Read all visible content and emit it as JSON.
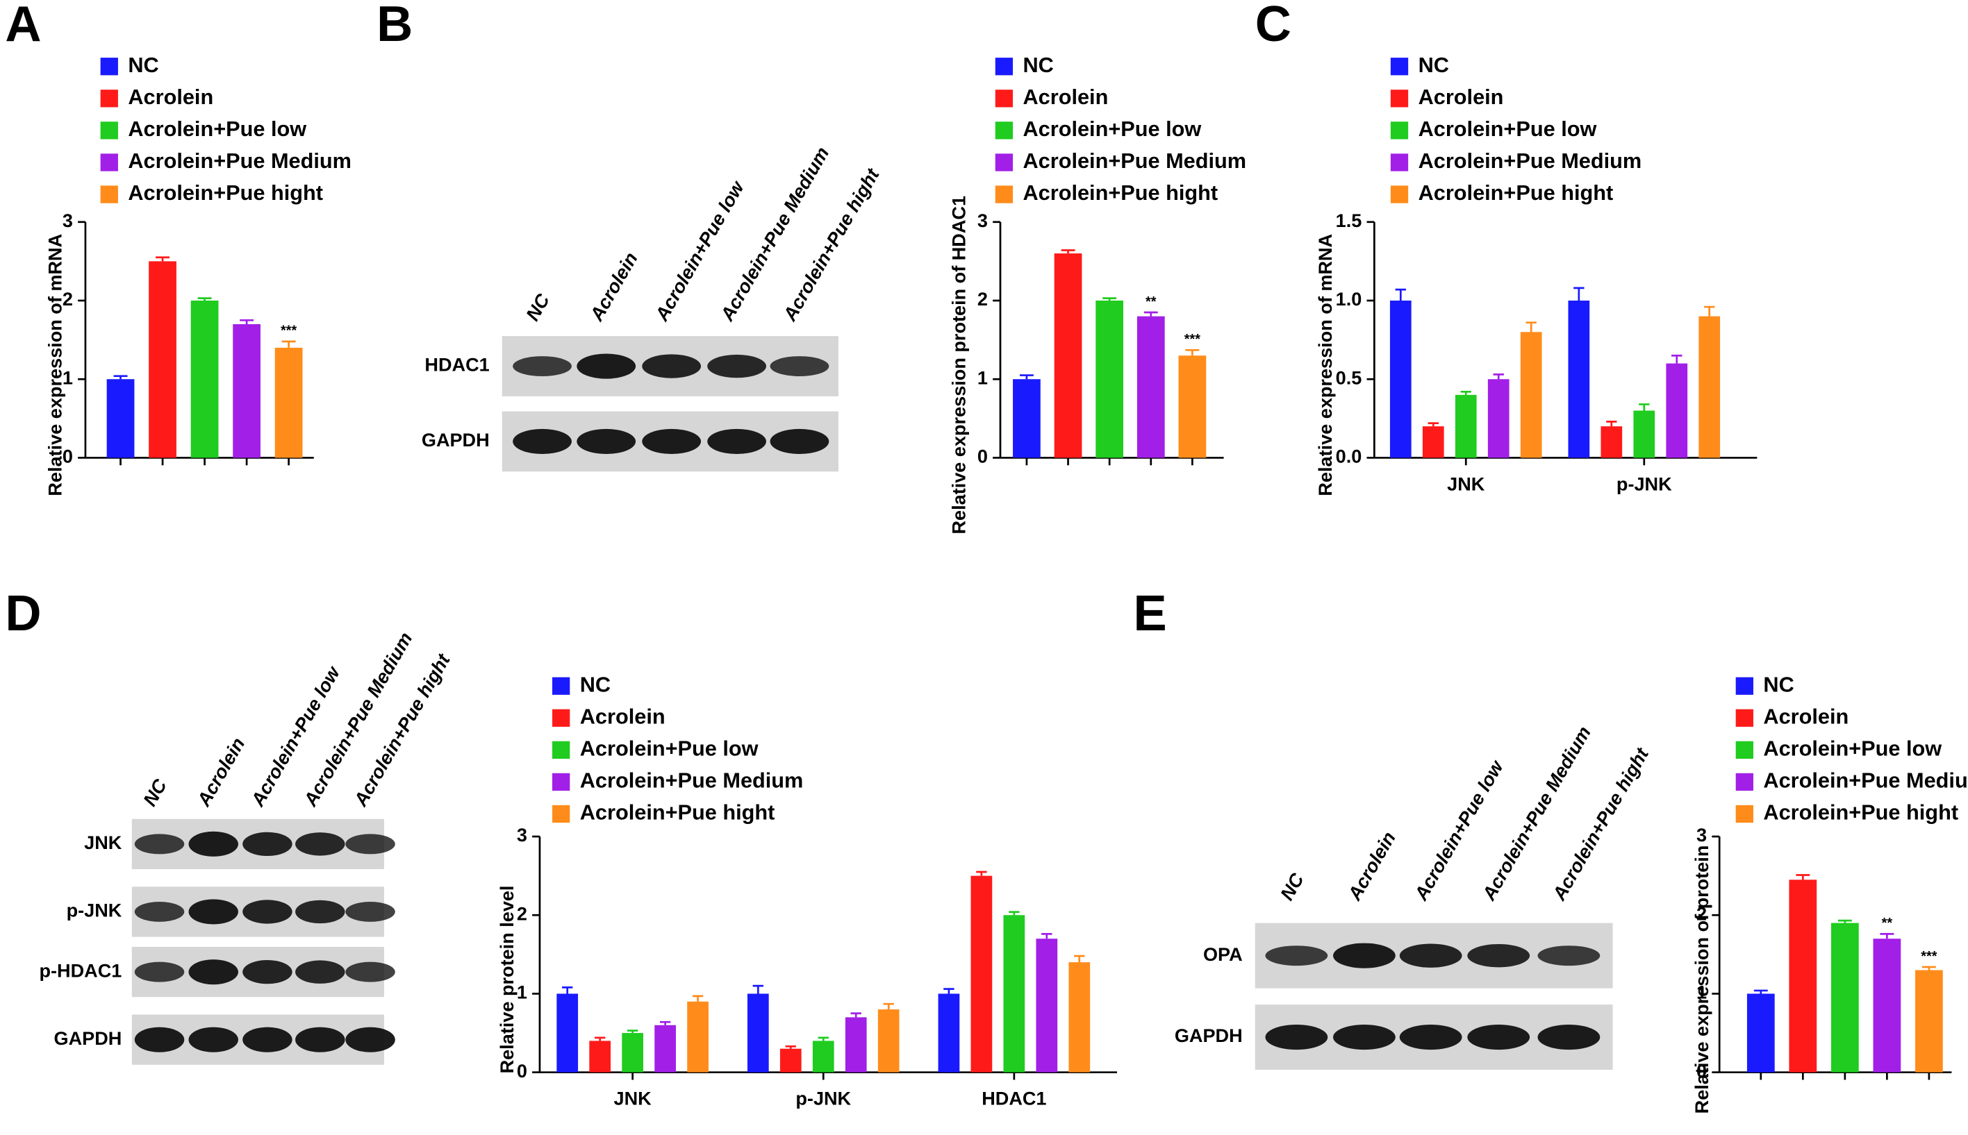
{
  "panel_labels": [
    "A",
    "B",
    "C",
    "D",
    "E"
  ],
  "chart_data": [
    {
      "type": "bar",
      "ylabel": "Relative expression of  mRNA",
      "categories": [
        null
      ],
      "ylim": [
        0,
        3
      ],
      "yticks": [
        0,
        1,
        2,
        3
      ],
      "series": [
        {
          "name": "NC",
          "color": "#1a1aff",
          "values": [
            1.0
          ],
          "errors": [
            0.04
          ]
        },
        {
          "name": "Acrolein",
          "color": "#ff1a1a",
          "values": [
            2.5
          ],
          "errors": [
            0.05
          ]
        },
        {
          "name": "Acrolein+Pue low",
          "color": "#1fcc1f",
          "values": [
            2.0
          ],
          "errors": [
            0.03
          ]
        },
        {
          "name": "Acrolein+Pue Medium",
          "color": "#a21fe8",
          "values": [
            1.7
          ],
          "errors": [
            0.05
          ]
        },
        {
          "name": "Acrolein+Pue hight",
          "color": "#ff8c1a",
          "values": [
            1.4
          ],
          "errors": [
            0.08
          ],
          "significance": [
            "***"
          ]
        }
      ]
    },
    {
      "type": "bar",
      "ylabel": "Relative expression protein of HDAC1",
      "categories": [
        null
      ],
      "ylim": [
        0,
        3
      ],
      "yticks": [
        0,
        1,
        2,
        3
      ],
      "series": [
        {
          "name": "NC",
          "color": "#1a1aff",
          "values": [
            1.0
          ],
          "errors": [
            0.05
          ]
        },
        {
          "name": "Acrolein",
          "color": "#ff1a1a",
          "values": [
            2.6
          ],
          "errors": [
            0.04
          ]
        },
        {
          "name": "Acrolein+Pue low",
          "color": "#1fcc1f",
          "values": [
            2.0
          ],
          "errors": [
            0.03
          ]
        },
        {
          "name": "Acrolein+Pue Medium",
          "color": "#a21fe8",
          "values": [
            1.8
          ],
          "errors": [
            0.05
          ],
          "significance": [
            "**"
          ]
        },
        {
          "name": "Acrolein+Pue hight",
          "color": "#ff8c1a",
          "values": [
            1.3
          ],
          "errors": [
            0.07
          ],
          "significance": [
            "***"
          ]
        }
      ]
    },
    {
      "type": "bar",
      "ylabel": "Relative expression of  mRNA",
      "categories": [
        "JNK",
        "p-JNK"
      ],
      "ylim": [
        0,
        1.5
      ],
      "yticks": [
        {
          "value": 0,
          "label": "0.0"
        },
        {
          "value": 0.5,
          "label": "0.5"
        },
        {
          "value": 1,
          "label": "1.0"
        },
        {
          "value": 1.5,
          "label": "1.5"
        }
      ],
      "series": [
        {
          "name": "NC",
          "color": "#1a1aff",
          "values": [
            1.0,
            1.0
          ],
          "errors": [
            0.07,
            0.08
          ]
        },
        {
          "name": "Acrolein",
          "color": "#ff1a1a",
          "values": [
            0.2,
            0.2
          ],
          "errors": [
            0.02,
            0.03
          ]
        },
        {
          "name": "Acrolein+Pue low",
          "color": "#1fcc1f",
          "values": [
            0.4,
            0.3
          ],
          "errors": [
            0.02,
            0.04
          ]
        },
        {
          "name": "Acrolein+Pue Medium",
          "color": "#a21fe8",
          "values": [
            0.5,
            0.6
          ],
          "errors": [
            0.03,
            0.05
          ]
        },
        {
          "name": "Acrolein+Pue hight",
          "color": "#ff8c1a",
          "values": [
            0.8,
            0.9
          ],
          "errors": [
            0.06,
            0.06
          ]
        }
      ]
    },
    {
      "type": "bar",
      "ylabel": "Relative protein level",
      "categories": [
        "JNK",
        "p-JNK",
        "HDAC1"
      ],
      "ylim": [
        0,
        3
      ],
      "yticks": [
        0,
        1,
        2,
        3
      ],
      "series": [
        {
          "name": "NC",
          "color": "#1a1aff",
          "values": [
            1.0,
            1.0,
            1.0
          ],
          "errors": [
            0.08,
            0.1,
            0.06
          ]
        },
        {
          "name": "Acrolein",
          "color": "#ff1a1a",
          "values": [
            0.4,
            0.3,
            2.5
          ],
          "errors": [
            0.04,
            0.03,
            0.05
          ]
        },
        {
          "name": "Acrolein+Pue low",
          "color": "#1fcc1f",
          "values": [
            0.5,
            0.4,
            2.0
          ],
          "errors": [
            0.03,
            0.04,
            0.04
          ]
        },
        {
          "name": "Acrolein+Pue Medium",
          "color": "#a21fe8",
          "values": [
            0.6,
            0.7,
            1.7
          ],
          "errors": [
            0.04,
            0.05,
            0.06
          ]
        },
        {
          "name": "Acrolein+Pue hight",
          "color": "#ff8c1a",
          "values": [
            0.9,
            0.8,
            1.4
          ],
          "errors": [
            0.07,
            0.07,
            0.08
          ]
        }
      ]
    },
    {
      "type": "bar",
      "ylabel": "Relative expression of  protein",
      "categories": [
        null
      ],
      "ylim": [
        0,
        3
      ],
      "yticks": [
        0,
        1,
        2,
        3
      ],
      "series": [
        {
          "name": "NC",
          "color": "#1a1aff",
          "values": [
            1.0
          ],
          "errors": [
            0.04
          ]
        },
        {
          "name": "Acrolein",
          "color": "#ff1a1a",
          "values": [
            2.45
          ],
          "errors": [
            0.06
          ]
        },
        {
          "name": "Acrolein+Pue low",
          "color": "#1fcc1f",
          "values": [
            1.9
          ],
          "errors": [
            0.03
          ]
        },
        {
          "name": "Acrolein+Pue Medium",
          "color": "#a21fe8",
          "values": [
            1.7
          ],
          "errors": [
            0.06
          ],
          "significance": [
            "**"
          ]
        },
        {
          "name": "Acrolein+Pue hight",
          "color": "#ff8c1a",
          "values": [
            1.3
          ],
          "errors": [
            0.04
          ],
          "significance": [
            "***"
          ]
        }
      ]
    }
  ],
  "blots": [
    {
      "lanes": [
        "NC",
        "Acrolein",
        "Acrolein+Pue low",
        "Acrolein+Pue Medium",
        "Acrolein+Pue hight"
      ],
      "rows": [
        "HDAC1",
        "GAPDH"
      ]
    },
    {
      "lanes": [
        "NC",
        "Acrolein",
        "Acrolein+Pue low",
        "Acrolein+Pue Medium",
        "Acrolein+Pue hight"
      ],
      "rows": [
        "JNK",
        "p-JNK",
        "p-HDAC1",
        "GAPDH"
      ]
    },
    {
      "lanes": [
        "NC",
        "Acrolein",
        "Acrolein+Pue low",
        "Acrolein+Pue Medium",
        "Acrolein+Pue hight"
      ],
      "rows": [
        "OPA",
        "GAPDH"
      ]
    }
  ]
}
